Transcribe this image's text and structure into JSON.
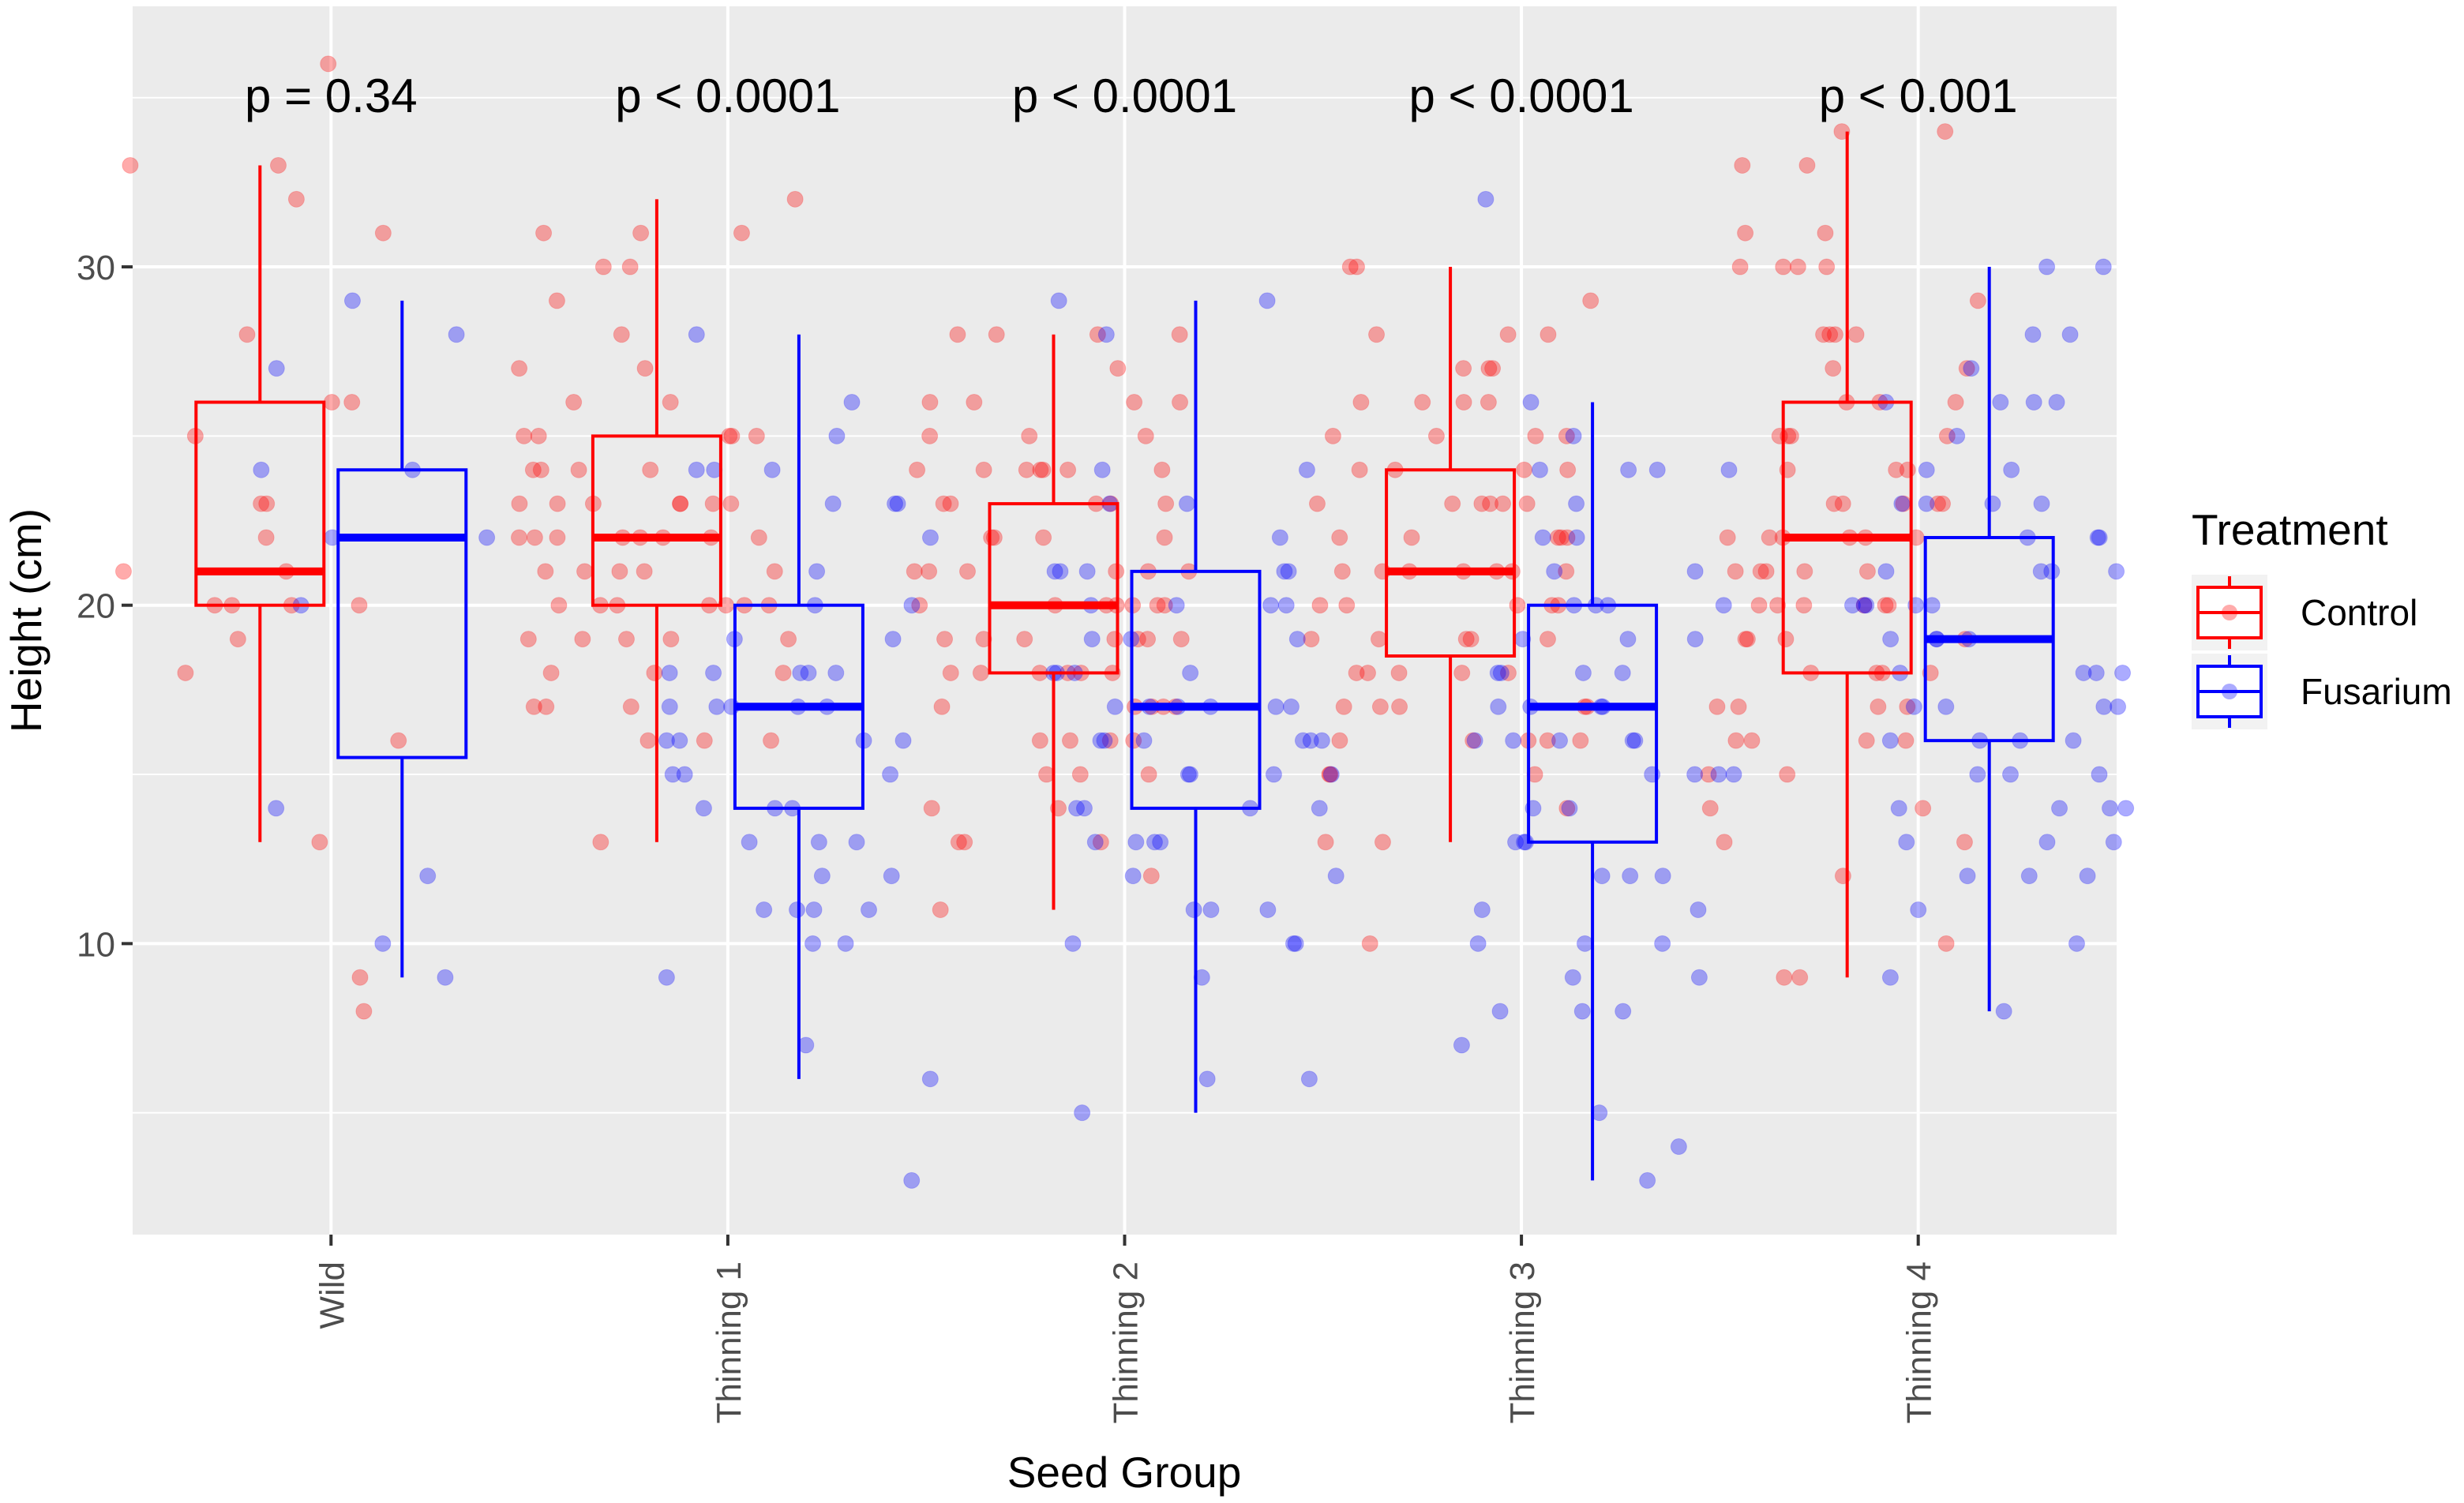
{
  "chart_data": {
    "type": "boxplot",
    "xlabel": "Seed Group",
    "ylabel": "Height (cm)",
    "ylim": [
      1.4,
      37.7
    ],
    "yticks": [
      10,
      20,
      30
    ],
    "grid": true,
    "legend": {
      "title": "Treatment",
      "position": "right",
      "entries": [
        {
          "name": "Control",
          "color": "#ff0000"
        },
        {
          "name": "Fusarium",
          "color": "#0000ff"
        }
      ]
    },
    "categories": [
      "Wild",
      "Thinning 1",
      "Thinning 2",
      "Thinning 3",
      "Thinning 4"
    ],
    "pvalues": [
      "p = 0.34",
      "p < 0.0001",
      "p < 0.0001",
      "p < 0.0001",
      "p < 0.001"
    ],
    "series": [
      {
        "name": "Control",
        "color": "#ff0000",
        "boxes": [
          {
            "min": 13,
            "q1": 20,
            "median": 21,
            "q3": 26,
            "max": 33
          },
          {
            "min": 13,
            "q1": 20,
            "median": 22,
            "q3": 25,
            "max": 32
          },
          {
            "min": 11,
            "q1": 18,
            "median": 20,
            "q3": 23,
            "max": 28
          },
          {
            "min": 13,
            "q1": 18.5,
            "median": 21,
            "q3": 24,
            "max": 30
          },
          {
            "min": 9,
            "q1": 18,
            "median": 22,
            "q3": 26,
            "max": 34
          }
        ],
        "points": [
          [
            36,
            33,
            28,
            25,
            26,
            26,
            23,
            23,
            22,
            21,
            21,
            20,
            20,
            20,
            20,
            19,
            18,
            16,
            13,
            8,
            9,
            33,
            32,
            31
          ],
          [
            32,
            31,
            31,
            31,
            30,
            30,
            29,
            28,
            27,
            27,
            26,
            26,
            25,
            25,
            25,
            25,
            25,
            24,
            24,
            24,
            24,
            23,
            23,
            23,
            23,
            23,
            23,
            22,
            22,
            22,
            22,
            22,
            22,
            22,
            21,
            21,
            21,
            21,
            21,
            20,
            20,
            20,
            20,
            20,
            20,
            20,
            19,
            19,
            19,
            19,
            19,
            18,
            18,
            18,
            17,
            17,
            17,
            16,
            16,
            16,
            13,
            23,
            22
          ],
          [
            28,
            28,
            28,
            28,
            27,
            26,
            26,
            26,
            26,
            25,
            25,
            25,
            24,
            24,
            24,
            24,
            24,
            24,
            24,
            23,
            23,
            23,
            23,
            23,
            22,
            22,
            22,
            22,
            21,
            21,
            21,
            21,
            21,
            21,
            20,
            20,
            20,
            20,
            20,
            20,
            20,
            19,
            19,
            19,
            19,
            19,
            19,
            19,
            18,
            18,
            18,
            18,
            18,
            18,
            17,
            17,
            17,
            17,
            17,
            16,
            16,
            16,
            16,
            15,
            15,
            15,
            14,
            14,
            13,
            13,
            13,
            12,
            11
          ],
          [
            30,
            30,
            29,
            28,
            28,
            28,
            27,
            27,
            27,
            26,
            26,
            26,
            26,
            25,
            25,
            25,
            25,
            24,
            24,
            24,
            24,
            23,
            23,
            23,
            23,
            23,
            23,
            22,
            22,
            22,
            22,
            22,
            21,
            21,
            21,
            21,
            21,
            21,
            21,
            20,
            20,
            20,
            20,
            20,
            19,
            19,
            19,
            19,
            19,
            18,
            18,
            18,
            18,
            18,
            17,
            17,
            17,
            17,
            17,
            16,
            16,
            16,
            16,
            16,
            15,
            15,
            15,
            14,
            13,
            13,
            10
          ],
          [
            34,
            34,
            33,
            33,
            31,
            31,
            30,
            30,
            30,
            29,
            28,
            28,
            28,
            27,
            27,
            26,
            26,
            26,
            25,
            25,
            25,
            25,
            24,
            24,
            24,
            23,
            23,
            23,
            23,
            23,
            22,
            22,
            22,
            22,
            22,
            22,
            21,
            21,
            21,
            21,
            21,
            20,
            20,
            20,
            20,
            20,
            20,
            19,
            19,
            19,
            19,
            18,
            18,
            18,
            18,
            17,
            17,
            17,
            17,
            16,
            16,
            16,
            16,
            15,
            15,
            14,
            14,
            13,
            13,
            12,
            10,
            9,
            9,
            28,
            30
          ]
        ]
      },
      {
        "name": "Fusarium",
        "color": "#0000ff",
        "boxes": [
          {
            "min": 9,
            "q1": 15.5,
            "median": 22,
            "q3": 24,
            "max": 29
          },
          {
            "min": 6,
            "q1": 14,
            "median": 17,
            "q3": 20,
            "max": 28
          },
          {
            "min": 5,
            "q1": 14,
            "median": 17,
            "q3": 21,
            "max": 29
          },
          {
            "min": 3,
            "q1": 13,
            "median": 17,
            "q3": 20,
            "max": 26
          },
          {
            "min": 8,
            "q1": 16,
            "median": 19,
            "q3": 22,
            "max": 30
          }
        ],
        "points": [
          [
            29,
            28,
            27,
            24,
            24,
            22,
            22,
            20,
            14,
            12,
            10,
            9
          ],
          [
            28,
            26,
            25,
            24,
            24,
            24,
            23,
            23,
            23,
            22,
            21,
            20,
            20,
            19,
            19,
            18,
            18,
            18,
            18,
            18,
            17,
            17,
            17,
            17,
            17,
            16,
            16,
            16,
            16,
            15,
            15,
            15,
            14,
            14,
            14,
            13,
            13,
            13,
            12,
            12,
            11,
            11,
            11,
            11,
            10,
            10,
            9,
            7,
            6,
            3
          ],
          [
            29,
            29,
            28,
            24,
            24,
            23,
            23,
            22,
            21,
            21,
            21,
            21,
            21,
            20,
            20,
            20,
            20,
            19,
            19,
            19,
            18,
            18,
            18,
            18,
            17,
            17,
            17,
            17,
            17,
            17,
            16,
            16,
            16,
            16,
            16,
            16,
            15,
            15,
            15,
            15,
            14,
            14,
            14,
            14,
            13,
            13,
            13,
            13,
            12,
            12,
            11,
            11,
            11,
            10,
            10,
            10,
            9,
            6,
            6,
            5
          ],
          [
            32,
            26,
            25,
            24,
            24,
            24,
            24,
            23,
            22,
            22,
            21,
            21,
            20,
            20,
            20,
            20,
            19,
            19,
            19,
            18,
            18,
            18,
            18,
            17,
            17,
            17,
            17,
            16,
            16,
            16,
            16,
            16,
            15,
            15,
            15,
            15,
            14,
            14,
            13,
            13,
            13,
            12,
            12,
            12,
            11,
            11,
            10,
            10,
            10,
            9,
            9,
            8,
            8,
            8,
            7,
            5,
            4,
            3
          ],
          [
            30,
            30,
            28,
            28,
            27,
            26,
            26,
            26,
            26,
            25,
            24,
            24,
            23,
            23,
            23,
            23,
            22,
            22,
            22,
            21,
            21,
            21,
            21,
            20,
            20,
            20,
            20,
            20,
            19,
            19,
            19,
            19,
            18,
            18,
            18,
            18,
            17,
            17,
            17,
            17,
            16,
            16,
            16,
            16,
            15,
            15,
            15,
            14,
            14,
            14,
            14,
            13,
            13,
            13,
            12,
            12,
            12,
            11,
            10,
            9,
            8
          ]
        ]
      }
    ]
  }
}
